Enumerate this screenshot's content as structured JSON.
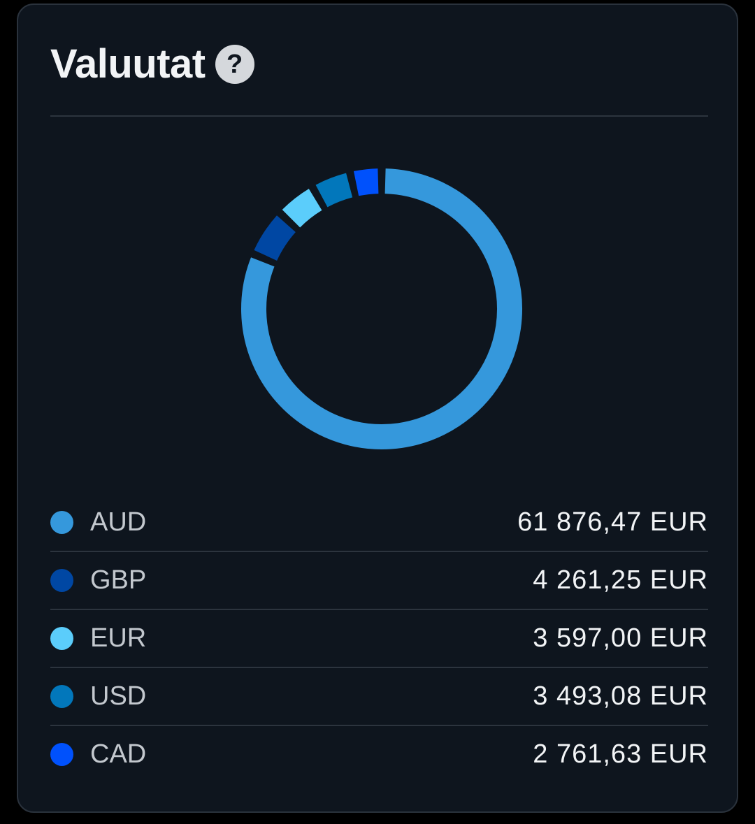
{
  "card": {
    "title": "Valuutat",
    "help_icon": "question-circle-icon",
    "help_glyph": "?"
  },
  "colors": {
    "background": "#0e151e",
    "text": "#f2f4f6",
    "muted_text": "#c3c8ce"
  },
  "chart_data": {
    "type": "pie",
    "style": "donut",
    "unit": "EUR",
    "categories": [
      "AUD",
      "GBP",
      "EUR",
      "USD",
      "CAD"
    ],
    "values": [
      61876.47,
      4261.25,
      3597.0,
      3493.08,
      2761.63
    ],
    "colors": [
      "#3598dc",
      "#0047a3",
      "#5bcdfb",
      "#0277bb",
      "#0051fc"
    ]
  },
  "legend": [
    {
      "code": "AUD",
      "amount": "61 876,47 EUR",
      "color": "#3598dc"
    },
    {
      "code": "GBP",
      "amount": "4 261,25 EUR",
      "color": "#0047a3"
    },
    {
      "code": "EUR",
      "amount": "3 597,00 EUR",
      "color": "#5bcdfb"
    },
    {
      "code": "USD",
      "amount": "3 493,08 EUR",
      "color": "#0277bb"
    },
    {
      "code": "CAD",
      "amount": "2 761,63 EUR",
      "color": "#0051fc"
    }
  ]
}
